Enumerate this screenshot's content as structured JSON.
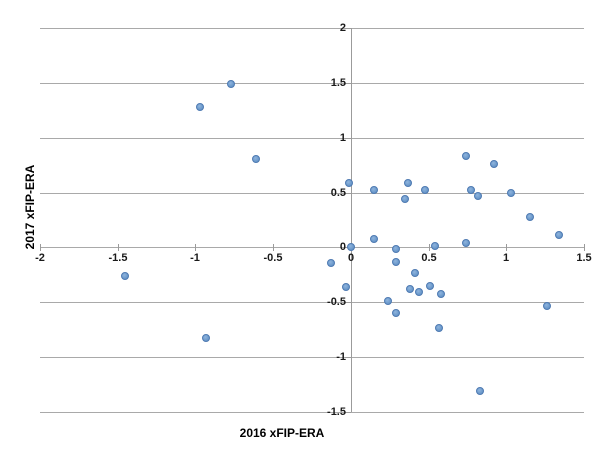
{
  "chart_data": {
    "type": "scatter",
    "title": "",
    "xlabel": "2016 xFIP-ERA",
    "ylabel": "2017 xFIP-ERA",
    "xlim": [
      -2,
      1.5
    ],
    "ylim": [
      -1.5,
      2
    ],
    "xticks": [
      -2,
      -1.5,
      -1,
      -0.5,
      0,
      0.5,
      1,
      1.5
    ],
    "xtick_labels": [
      "-2",
      "-1.5",
      "-1",
      "-0.5",
      "0",
      "0.5",
      "1",
      "1.5"
    ],
    "yticks": [
      2,
      1.5,
      1,
      0.5,
      0,
      -0.5,
      -1,
      -1.5
    ],
    "ytick_labels": [
      "2",
      "1.5",
      "1",
      "0.5",
      "0",
      "-0.5",
      "-1",
      "-1.5"
    ],
    "grid": "horizontal",
    "legend": "none",
    "points": [
      [
        -1.45,
        -0.26
      ],
      [
        -0.97,
        1.28
      ],
      [
        -0.93,
        -0.83
      ],
      [
        -0.77,
        1.49
      ],
      [
        -0.61,
        0.81
      ],
      [
        -0.13,
        -0.14
      ],
      [
        -0.03,
        -0.36
      ],
      [
        -0.01,
        0.59
      ],
      [
        0.0,
        0.0
      ],
      [
        0.15,
        0.08
      ],
      [
        0.15,
        0.52
      ],
      [
        0.24,
        -0.49
      ],
      [
        0.29,
        -0.01
      ],
      [
        0.29,
        -0.13
      ],
      [
        0.29,
        -0.6
      ],
      [
        0.35,
        0.44
      ],
      [
        0.37,
        0.59
      ],
      [
        0.38,
        -0.38
      ],
      [
        0.41,
        -0.23
      ],
      [
        0.44,
        -0.41
      ],
      [
        0.48,
        0.52
      ],
      [
        0.51,
        -0.35
      ],
      [
        0.54,
        0.01
      ],
      [
        0.57,
        -0.73
      ],
      [
        0.58,
        -0.42
      ],
      [
        0.74,
        0.04
      ],
      [
        0.74,
        0.83
      ],
      [
        0.77,
        0.52
      ],
      [
        0.82,
        0.47
      ],
      [
        0.83,
        -1.31
      ],
      [
        0.92,
        0.76
      ],
      [
        1.03,
        0.5
      ],
      [
        1.15,
        0.28
      ],
      [
        1.26,
        -0.53
      ],
      [
        1.34,
        0.11
      ]
    ]
  },
  "colors": {
    "marker_fill": "#6f9ccd",
    "marker_border": "#4e7ab2",
    "gridline": "#a9a9a9",
    "axis_line": "#9b9b9b",
    "text": "#1a1a1a",
    "background": "#ffffff"
  }
}
